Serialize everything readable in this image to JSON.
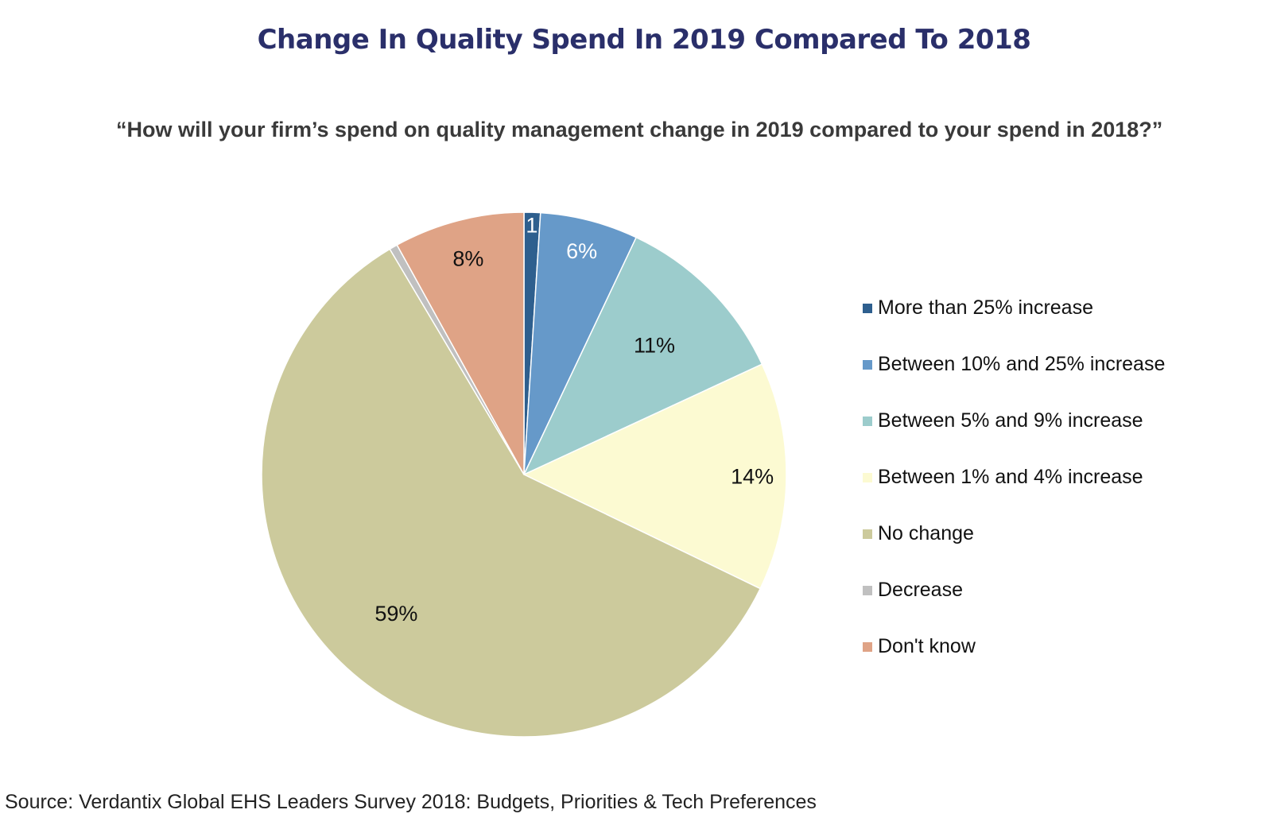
{
  "chart_data": {
    "type": "pie",
    "title": "Change In Quality Spend In 2019 Compared To 2018",
    "subtitle": "“How will your firm’s spend on quality management change in 2019 compared to your spend in 2018?”",
    "legend_placement": "right",
    "slices": [
      {
        "name": "More than 25% increase",
        "value": 1,
        "label": "1",
        "color": "#2e5f8e",
        "label_color": "#ffffff"
      },
      {
        "name": "Between 10% and 25% increase",
        "value": 6,
        "label": "6%",
        "color": "#6699c9",
        "label_color": "#ffffff"
      },
      {
        "name": "Between 5% and 9% increase",
        "value": 11,
        "label": "11%",
        "color": "#9ccccc",
        "label_color": "#111111"
      },
      {
        "name": "Between 1% and 4% increase",
        "value": 14,
        "label": "14%",
        "color": "#fcfad2",
        "label_color": "#111111"
      },
      {
        "name": "No change",
        "value": 59,
        "label": "59%",
        "color": "#ccca9c",
        "label_color": "#111111"
      },
      {
        "name": "Decrease",
        "value": 0.5,
        "label": "",
        "color": "#c0c0c0",
        "label_color": "#111111"
      },
      {
        "name": "Don't know",
        "value": 8,
        "label": "8%",
        "color": "#dfa386",
        "label_color": "#111111"
      }
    ]
  },
  "source": "Source: Verdantix Global EHS Leaders Survey 2018: Budgets, Priorities & Tech Preferences"
}
